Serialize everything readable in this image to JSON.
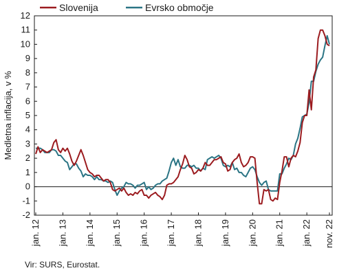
{
  "chart_data": {
    "type": "line",
    "ylabel": "Medletna inflacija, v %",
    "ylim": [
      -2,
      12
    ],
    "yticks": [
      "-2",
      "-1",
      "0",
      "1",
      "2",
      "3",
      "4",
      "5",
      "6",
      "7",
      "8",
      "9",
      "10",
      "11",
      "12"
    ],
    "x_labels": [
      "jan. 12",
      "jan. 13",
      "jan. 14",
      "jan. 15",
      "jan. 16",
      "jan. 17",
      "jan. 18",
      "jan. 19",
      "jan. 20",
      "jan. 21",
      "jan. 22",
      "nov. 22"
    ],
    "grid": false,
    "legend_position": "top",
    "series": [
      {
        "name": "Slovenija",
        "color": "#9b1b1f",
        "values": [
          2.3,
          2.8,
          2.4,
          2.6,
          2.5,
          2.4,
          2.5,
          2.6,
          3.1,
          3.3,
          2.6,
          2.4,
          2.7,
          2.5,
          2.7,
          2.3,
          1.8,
          1.5,
          1.8,
          2.2,
          2.6,
          2.2,
          1.7,
          1.2,
          1.0,
          0.9,
          0.7,
          0.8,
          0.8,
          0.6,
          0.4,
          0.5,
          0.5,
          0.3,
          -0.2,
          -0.3,
          -0.2,
          -0.1,
          -0.3,
          -0.1,
          -0.4,
          -0.6,
          -0.5,
          -0.6,
          -0.4,
          -0.5,
          -0.3,
          -0.2,
          -0.6,
          -0.6,
          -0.8,
          -0.6,
          -0.5,
          -0.4,
          -0.6,
          -0.7,
          -0.9,
          -0.6,
          0.1,
          0.2,
          0.2,
          0.3,
          0.5,
          0.7,
          1.2,
          1.6,
          2.2,
          1.9,
          1.4,
          1.3,
          0.9,
          1.0,
          1.2,
          1.1,
          1.3,
          1.7,
          1.5,
          1.5,
          1.7,
          1.9,
          1.9,
          2.0,
          2.1,
          1.7,
          1.6,
          1.1,
          1.2,
          1.7,
          1.9,
          2.0,
          2.3,
          1.7,
          1.4,
          1.5,
          1.7,
          2.1,
          2.1,
          2.0,
          0.3,
          -1.2,
          -1.2,
          -0.2,
          -0.3,
          -0.2,
          -0.9,
          -1.0,
          -0.8,
          -0.9,
          0.3,
          1.1,
          2.1,
          2.1,
          1.4,
          2.0,
          2.2,
          2.1,
          2.5,
          3.1,
          4.5,
          5.0,
          5.0,
          6.8,
          5.4,
          7.7,
          8.2,
          10.4,
          11.0,
          11.0,
          10.6,
          10.0,
          9.9
        ],
        "color_name": "dark-red"
      },
      {
        "name": "Evrsko območje",
        "color": "#2a7484",
        "values": [
          2.7,
          2.7,
          2.7,
          2.6,
          2.4,
          2.4,
          2.4,
          2.6,
          2.6,
          2.5,
          2.2,
          2.2,
          2.0,
          1.8,
          1.7,
          1.2,
          1.4,
          1.6,
          1.6,
          1.3,
          1.1,
          0.7,
          0.9,
          0.8,
          0.8,
          0.7,
          0.5,
          0.7,
          0.5,
          0.5,
          0.4,
          0.4,
          0.3,
          0.4,
          0.3,
          -0.2,
          -0.6,
          -0.3,
          -0.1,
          0.0,
          0.3,
          0.2,
          0.2,
          0.1,
          -0.1,
          0.1,
          0.1,
          0.2,
          0.3,
          -0.2,
          0.0,
          -0.2,
          -0.1,
          0.1,
          0.2,
          0.2,
          0.4,
          0.5,
          0.6,
          1.1,
          1.7,
          2.0,
          1.5,
          1.9,
          1.4,
          1.3,
          1.3,
          1.5,
          1.5,
          1.4,
          1.5,
          1.3,
          1.3,
          1.1,
          1.3,
          1.2,
          1.9,
          2.0,
          2.1,
          2.0,
          2.1,
          2.2,
          2.0,
          1.5,
          1.4,
          1.5,
          1.4,
          1.7,
          1.2,
          1.3,
          1.0,
          1.0,
          0.8,
          0.7,
          1.0,
          1.3,
          1.4,
          1.2,
          0.7,
          0.3,
          0.1,
          0.3,
          0.4,
          -0.2,
          -0.3,
          -0.3,
          -0.3,
          -0.3,
          0.9,
          0.9,
          1.3,
          1.6,
          2.0,
          1.9,
          2.2,
          3.0,
          3.4,
          4.1,
          4.9,
          5.0,
          5.1,
          5.9,
          7.4,
          7.4,
          8.1,
          8.6,
          8.9,
          9.1,
          9.9,
          10.6,
          10.0
        ]
      }
    ]
  },
  "source": "Vir: SURS, Eurostat."
}
